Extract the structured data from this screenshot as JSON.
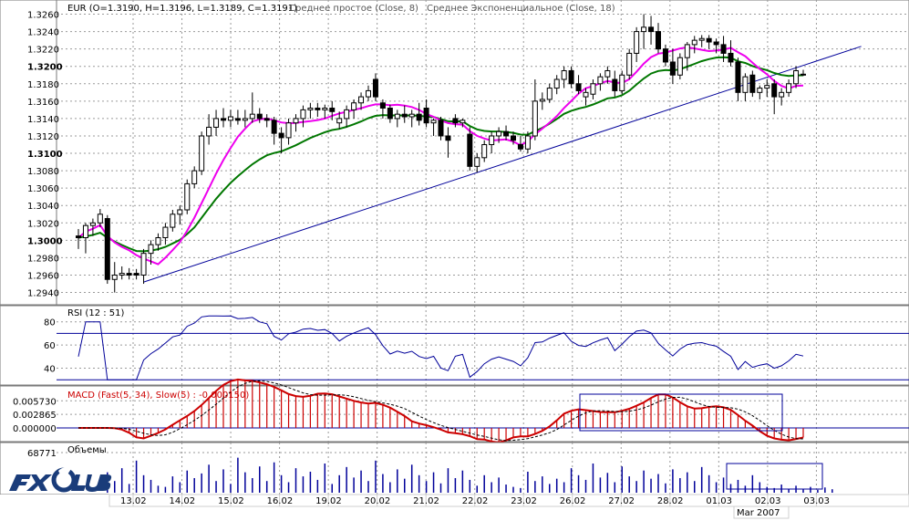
{
  "chart_data": [
    {
      "panel": "price",
      "type": "candlestick",
      "symbol": "EUR",
      "header": {
        "ohlc_text": "EUR (O=1.3190, H=1.3196, L=1.3189, C=1.3191)",
        "ma1_text": "Среднее простое (Close, 8)",
        "ma2_text": "Среднее Экспоненциальное (Close, 18)"
      },
      "y_ticks": [
        "1.3260",
        "1.3240",
        "1.3220",
        "1.3200",
        "1.3180",
        "1.3160",
        "1.3140",
        "1.3120",
        "1.3100",
        "1.3080",
        "1.3060",
        "1.3040",
        "1.3020",
        "1.3000",
        "1.2980",
        "1.2960",
        "1.2940"
      ],
      "bold_ticks": [
        "1.3200",
        "1.3100",
        "1.3000"
      ],
      "ylim": [
        1.2928,
        1.327
      ],
      "x_ticks": [
        "13.02",
        "14.02",
        "15.02",
        "16.02",
        "19.02",
        "20.02",
        "21.02",
        "22.02",
        "23.02",
        "26.02",
        "27.02",
        "28.02",
        "01.03",
        "02.03",
        "03.03"
      ],
      "month_label": "Mar 2007",
      "candles": [
        [
          1.3005,
          1.3013,
          1.299,
          1.3003
        ],
        [
          1.3003,
          1.302,
          1.2985,
          1.3017
        ],
        [
          1.3017,
          1.3025,
          1.3005,
          1.302
        ],
        [
          1.302,
          1.3036,
          1.3015,
          1.303
        ],
        [
          1.3025,
          1.3029,
          1.295,
          1.2955
        ],
        [
          1.2955,
          1.2975,
          1.294,
          1.296
        ],
        [
          1.296,
          1.297,
          1.2955,
          1.2962
        ],
        [
          1.2962,
          1.2968,
          1.2955,
          1.296
        ],
        [
          1.2962,
          1.2967,
          1.2955,
          1.296
        ],
        [
          1.296,
          1.299,
          1.295,
          1.2985
        ],
        [
          1.2985,
          1.3,
          1.2972,
          1.2995
        ],
        [
          1.2995,
          1.3008,
          1.2988,
          1.3003
        ],
        [
          1.3003,
          1.302,
          1.2995,
          1.3015
        ],
        [
          1.3015,
          1.3035,
          1.301,
          1.303
        ],
        [
          1.303,
          1.304,
          1.3018,
          1.3035
        ],
        [
          1.3035,
          1.307,
          1.303,
          1.3065
        ],
        [
          1.3065,
          1.3085,
          1.306,
          1.308
        ],
        [
          1.308,
          1.3125,
          1.3075,
          1.312
        ],
        [
          1.312,
          1.3145,
          1.311,
          1.313
        ],
        [
          1.313,
          1.315,
          1.312,
          1.314
        ],
        [
          1.314,
          1.3152,
          1.313,
          1.3138
        ],
        [
          1.3138,
          1.315,
          1.313,
          1.3142
        ],
        [
          1.314,
          1.315,
          1.3133,
          1.3138
        ],
        [
          1.3138,
          1.315,
          1.313,
          1.314
        ],
        [
          1.314,
          1.317,
          1.3135,
          1.3145
        ],
        [
          1.3145,
          1.3152,
          1.3135,
          1.314
        ],
        [
          1.314,
          1.3145,
          1.313,
          1.3138
        ],
        [
          1.3138,
          1.3142,
          1.311,
          1.3123
        ],
        [
          1.3123,
          1.313,
          1.31,
          1.3118
        ],
        [
          1.3118,
          1.314,
          1.311,
          1.3135
        ],
        [
          1.3135,
          1.3145,
          1.3125,
          1.314
        ],
        [
          1.314,
          1.3155,
          1.313,
          1.315
        ],
        [
          1.315,
          1.3158,
          1.314,
          1.3152
        ],
        [
          1.3152,
          1.3158,
          1.3142,
          1.315
        ],
        [
          1.315,
          1.3156,
          1.314,
          1.3152
        ],
        [
          1.3152,
          1.316,
          1.3138,
          1.3148
        ],
        [
          1.3135,
          1.3148,
          1.3128,
          1.314
        ],
        [
          1.314,
          1.3155,
          1.313,
          1.315
        ],
        [
          1.315,
          1.3162,
          1.314,
          1.3158
        ],
        [
          1.3158,
          1.317,
          1.315,
          1.3165
        ],
        [
          1.3165,
          1.3178,
          1.316,
          1.3172
        ],
        [
          1.3185,
          1.3192,
          1.316,
          1.3165
        ],
        [
          1.3158,
          1.3162,
          1.314,
          1.3152
        ],
        [
          1.3152,
          1.3156,
          1.3135,
          1.314
        ],
        [
          1.314,
          1.315,
          1.313,
          1.3145
        ],
        [
          1.3145,
          1.3155,
          1.3135,
          1.3142
        ],
        [
          1.3142,
          1.315,
          1.313,
          1.3145
        ],
        [
          1.3145,
          1.3158,
          1.3132,
          1.3138
        ],
        [
          1.3152,
          1.3162,
          1.313,
          1.3135
        ],
        [
          1.3135,
          1.314,
          1.312,
          1.3138
        ],
        [
          1.3138,
          1.3142,
          1.3115,
          1.312
        ],
        [
          1.312,
          1.313,
          1.3095,
          1.3115
        ],
        [
          1.314,
          1.3145,
          1.313,
          1.3135
        ],
        [
          1.3135,
          1.314,
          1.313,
          1.3138
        ],
        [
          1.3122,
          1.313,
          1.308,
          1.3085
        ],
        [
          1.3085,
          1.31,
          1.3078,
          1.3095
        ],
        [
          1.3095,
          1.3115,
          1.309,
          1.311
        ],
        [
          1.311,
          1.3125,
          1.31,
          1.312
        ],
        [
          1.312,
          1.313,
          1.3112,
          1.3125
        ],
        [
          1.3125,
          1.3132,
          1.3115,
          1.312
        ],
        [
          1.312,
          1.3125,
          1.311,
          1.3115
        ],
        [
          1.311,
          1.312,
          1.3102,
          1.3105
        ],
        [
          1.3105,
          1.3125,
          1.31,
          1.312
        ],
        [
          1.312,
          1.3185,
          1.3115,
          1.316
        ],
        [
          1.316,
          1.317,
          1.315,
          1.3162
        ],
        [
          1.3162,
          1.318,
          1.3158,
          1.3175
        ],
        [
          1.3175,
          1.319,
          1.3168,
          1.3185
        ],
        [
          1.3185,
          1.32,
          1.3175,
          1.3195
        ],
        [
          1.3195,
          1.32,
          1.3175,
          1.318
        ],
        [
          1.318,
          1.319,
          1.3168,
          1.3172
        ],
        [
          1.3165,
          1.3175,
          1.3155,
          1.317
        ],
        [
          1.3168,
          1.3185,
          1.3162,
          1.318
        ],
        [
          1.318,
          1.3192,
          1.3172,
          1.3188
        ],
        [
          1.3188,
          1.32,
          1.318,
          1.3195
        ],
        [
          1.3185,
          1.3195,
          1.3165,
          1.3172
        ],
        [
          1.3172,
          1.3195,
          1.3168,
          1.319
        ],
        [
          1.319,
          1.322,
          1.3185,
          1.3215
        ],
        [
          1.3215,
          1.3245,
          1.3205,
          1.324
        ],
        [
          1.324,
          1.326,
          1.322,
          1.3245
        ],
        [
          1.3245,
          1.3258,
          1.3225,
          1.324
        ],
        [
          1.324,
          1.325,
          1.3215,
          1.322
        ],
        [
          1.322,
          1.3225,
          1.32,
          1.3205
        ],
        [
          1.3205,
          1.322,
          1.318,
          1.319
        ],
        [
          1.319,
          1.3215,
          1.3185,
          1.321
        ],
        [
          1.321,
          1.3228,
          1.3195,
          1.3225
        ],
        [
          1.3225,
          1.3235,
          1.3215,
          1.323
        ],
        [
          1.323,
          1.3236,
          1.3222,
          1.3232
        ],
        [
          1.3232,
          1.3236,
          1.322,
          1.3228
        ],
        [
          1.3228,
          1.3232,
          1.3215,
          1.3225
        ],
        [
          1.3225,
          1.3235,
          1.3205,
          1.3215
        ],
        [
          1.3215,
          1.323,
          1.32,
          1.3205
        ],
        [
          1.3205,
          1.321,
          1.316,
          1.317
        ],
        [
          1.317,
          1.3192,
          1.316,
          1.3188
        ],
        [
          1.319,
          1.3195,
          1.3165,
          1.317
        ],
        [
          1.317,
          1.3178,
          1.3162,
          1.3175
        ],
        [
          1.3175,
          1.3185,
          1.3165,
          1.3178
        ],
        [
          1.318,
          1.3185,
          1.3145,
          1.3165
        ],
        [
          1.3165,
          1.3175,
          1.3155,
          1.317
        ],
        [
          1.317,
          1.3185,
          1.3165,
          1.318
        ],
        [
          1.318,
          1.32,
          1.3175,
          1.3195
        ],
        [
          1.319,
          1.3196,
          1.3189,
          1.3191
        ]
      ],
      "trendline": {
        "from_index": 9,
        "from_value": 1.2952,
        "to_index": 108,
        "to_value": 1.3223
      },
      "sma8_color": "#ee00ee",
      "ema18_color": "#007700"
    },
    {
      "panel": "rsi",
      "type": "line",
      "label": "RSI (12 : 51)",
      "y_ticks": [
        "80",
        "60",
        "40"
      ],
      "ylim": [
        27,
        90
      ],
      "levels": [
        70,
        30
      ],
      "color": "#000099"
    },
    {
      "panel": "macd",
      "type": "bar",
      "label": "MACD (Fast(5, 34), Slow(5) : -0.000150)",
      "y_ticks": [
        "0.005730",
        "0.002865",
        "0.000000"
      ],
      "ylim": [
        -0.0025,
        0.0079
      ],
      "hist_color": "#cc0000",
      "signal_color": "#000000"
    },
    {
      "panel": "volume",
      "type": "bar",
      "label": "Объемы",
      "y_ticks": [
        "68771"
      ],
      "ymax": 68771,
      "color": "#000099",
      "values": [
        35000,
        20000,
        42000,
        15000,
        55000,
        30000,
        22000,
        12000,
        10000,
        28000,
        18000,
        38000,
        25000,
        33000,
        48000,
        20000,
        40000,
        15000,
        60000,
        35000,
        25000,
        45000,
        20000,
        52000,
        30000,
        18000,
        42000,
        28000,
        36000,
        22000,
        50000,
        15000,
        30000,
        44000,
        26000,
        38000,
        20000,
        55000,
        32000,
        18000,
        40000,
        24000,
        48000,
        30000,
        20000,
        35000,
        16000,
        42000,
        25000,
        38000,
        22000,
        12000,
        30000,
        18000,
        26000,
        14000,
        10000,
        8000,
        36000,
        20000,
        28000,
        15000,
        24000,
        18000,
        42000,
        30000,
        22000,
        50000,
        26000,
        34000,
        18000,
        45000,
        28000,
        20000,
        38000,
        24000,
        32000,
        16000,
        40000,
        25000,
        35000,
        20000,
        44000,
        30000,
        18000,
        26000,
        15000,
        22000,
        12000,
        30000,
        18000,
        10000,
        8000,
        14000,
        6000,
        12000,
        7000,
        10000,
        5000,
        9000,
        6000
      ]
    }
  ],
  "watermark": "FX CLUB"
}
